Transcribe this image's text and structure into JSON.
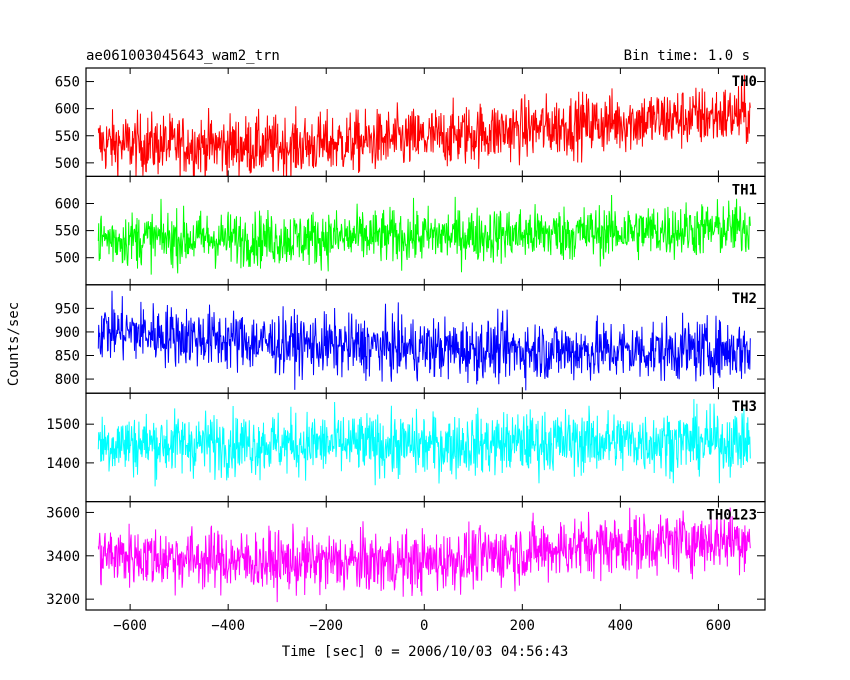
{
  "header": {
    "left_title": "ae061003045643_wam2_trn",
    "right_title": "Bin time: 1.0 s"
  },
  "chart_data": {
    "type": "line",
    "xlabel": "Time [sec] 0 = 2006/10/03 04:56:43",
    "ylabel": "Counts/sec",
    "xlim": [
      -690,
      695
    ],
    "xticks": [
      -600,
      -400,
      -200,
      0,
      200,
      400,
      600
    ],
    "x_start": -665,
    "x_end": 665,
    "bin_time_s": 1.0,
    "panels": [
      {
        "name": "TH0",
        "color": "#ff0000",
        "ylim": [
          475,
          675
        ],
        "yticks": [
          500,
          550,
          600,
          650
        ],
        "trend": [
          [
            -665,
            535
          ],
          [
            -300,
            530
          ],
          [
            0,
            545
          ],
          [
            300,
            570
          ],
          [
            665,
            590
          ]
        ],
        "noise": 28
      },
      {
        "name": "TH1",
        "color": "#00ff00",
        "ylim": [
          450,
          650
        ],
        "yticks": [
          500,
          550,
          600
        ],
        "trend": [
          [
            -665,
            535
          ],
          [
            -300,
            535
          ],
          [
            0,
            540
          ],
          [
            300,
            545
          ],
          [
            665,
            555
          ]
        ],
        "noise": 25
      },
      {
        "name": "TH2",
        "color": "#0000ff",
        "ylim": [
          770,
          1000
        ],
        "yticks": [
          800,
          850,
          900,
          950
        ],
        "trend": [
          [
            -665,
            905
          ],
          [
            -300,
            875
          ],
          [
            0,
            865
          ],
          [
            300,
            860
          ],
          [
            665,
            862
          ]
        ],
        "noise": 32
      },
      {
        "name": "TH3",
        "color": "#00ffff",
        "ylim": [
          1300,
          1580
        ],
        "yticks": [
          1400,
          1500
        ],
        "trend": [
          [
            -665,
            1450
          ],
          [
            -300,
            1450
          ],
          [
            0,
            1445
          ],
          [
            300,
            1455
          ],
          [
            665,
            1455
          ]
        ],
        "noise": 40
      },
      {
        "name": "TH0123",
        "color": "#ff00ff",
        "ylim": [
          3150,
          3650
        ],
        "yticks": [
          3200,
          3400,
          3600
        ],
        "trend": [
          [
            -665,
            3405
          ],
          [
            -300,
            3370
          ],
          [
            0,
            3370
          ],
          [
            300,
            3440
          ],
          [
            665,
            3480
          ]
        ],
        "noise": 70
      }
    ]
  }
}
